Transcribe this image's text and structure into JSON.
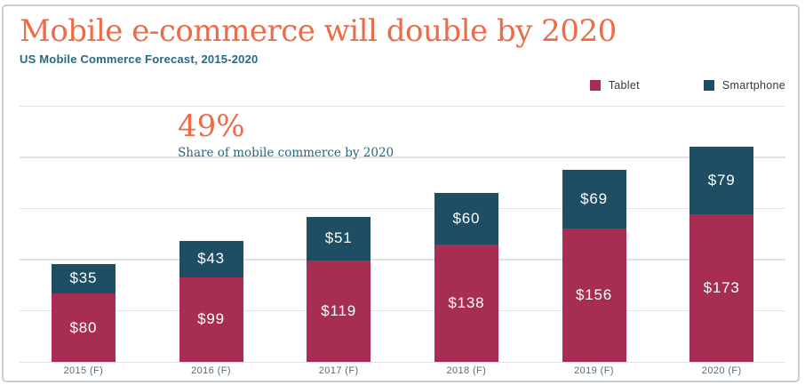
{
  "colors": {
    "accent_orange": "#ED6B45",
    "teal_text": "#266A84",
    "tablet_bar": "#A82D53",
    "smartphone_bar": "#1E4E63",
    "gridline": "#E3E3E3",
    "axis_label": "#5C6B73",
    "legend_text": "#33383C",
    "card_border": "#C7D0D6",
    "bar_value_text": "#FFFFFF"
  },
  "chart_data": {
    "type": "bar",
    "stacked": true,
    "title": "Mobile e-commerce will double by 2020",
    "subtitle": "US Mobile Commerce Forecast, 2015-2020",
    "categories": [
      "2015 (F)",
      "2016 (F)",
      "2017 (F)",
      "2018 (F)",
      "2019 (F)",
      "2020 (F)"
    ],
    "series": [
      {
        "name": "Tablet",
        "color": "#A82D53",
        "values": [
          80,
          99,
          119,
          138,
          156,
          173
        ]
      },
      {
        "name": "Smartphone",
        "color": "#1E4E63",
        "values": [
          35,
          43,
          51,
          60,
          69,
          79
        ]
      }
    ],
    "value_prefix": "$",
    "xlabel": "",
    "ylabel": "",
    "ylim": [
      0,
      300
    ],
    "gridline_interval": 60,
    "grid": true,
    "y_tick_labels_visible": false,
    "legend_position": "top-right",
    "annotation": {
      "value": "49%",
      "caption": "Share of mobile commerce by 2020"
    }
  }
}
